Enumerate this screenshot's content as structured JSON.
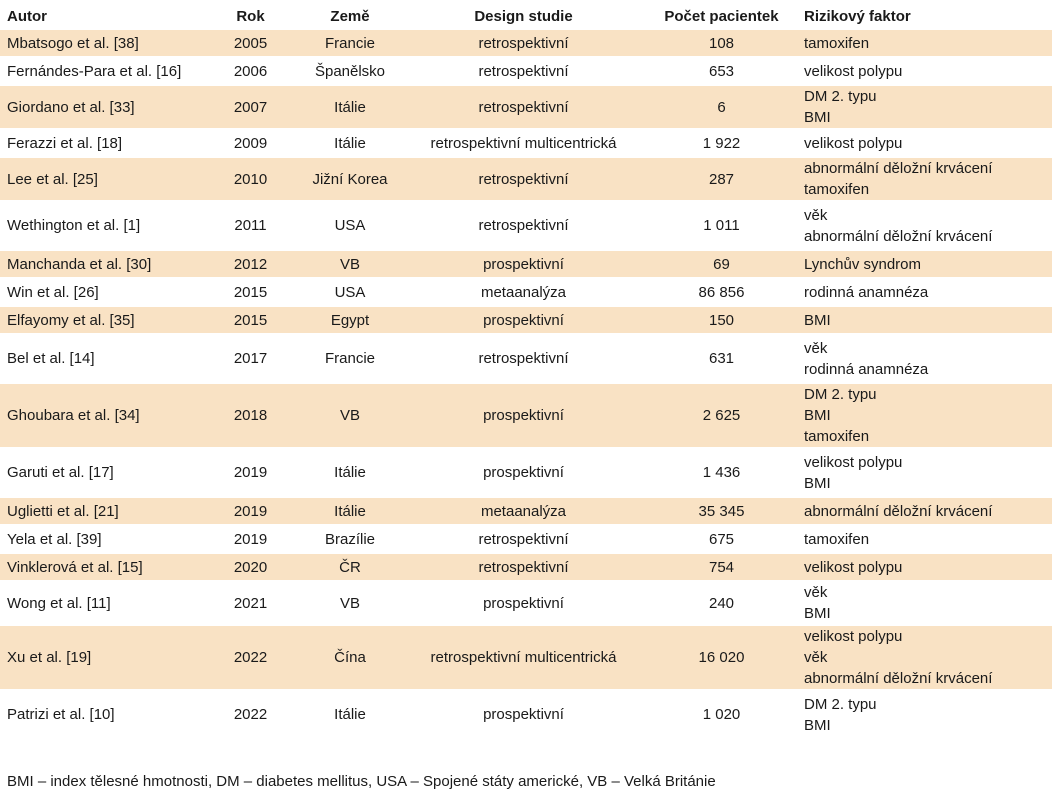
{
  "headers": [
    "Autor",
    "Rok",
    "Země",
    "Design studie",
    "Počet pacientek",
    "Rizikový faktor"
  ],
  "rows": [
    {
      "autor": "Mbatsogo et al. [38]",
      "rok": "2005",
      "zeme": "Francie",
      "design": "retrospektivní",
      "pocet": "108",
      "rf": [
        "tamoxifen"
      ]
    },
    {
      "autor": "Fernándes-Para et al. [16]",
      "rok": "2006",
      "zeme": "Španělsko",
      "design": "retrospektivní",
      "pocet": "653",
      "rf": [
        "velikost polypu"
      ]
    },
    {
      "autor": "Giordano et al. [33]",
      "rok": "2007",
      "zeme": "Itálie",
      "design": "retrospektivní",
      "pocet": "6",
      "rf": [
        "DM 2. typu",
        "BMI"
      ]
    },
    {
      "autor": "Ferazzi et al. [18]",
      "rok": "2009",
      "zeme": "Itálie",
      "design": "retrospektivní multicentrická",
      "pocet": "1 922",
      "rf": [
        "velikost polypu"
      ]
    },
    {
      "autor": "Lee et al. [25]",
      "rok": "2010",
      "zeme": "Jižní Korea",
      "design": "retrospektivní",
      "pocet": "287",
      "rf": [
        "abnormální děložní krvácení",
        "tamoxifen"
      ]
    },
    {
      "autor": "Wethington et al. [1]",
      "rok": "2011",
      "zeme": "USA",
      "design": "retrospektivní",
      "pocet": "1 011",
      "rf": [
        "věk",
        "abnormální děložní krvácení"
      ]
    },
    {
      "autor": "Manchanda et al. [30]",
      "rok": "2012",
      "zeme": "VB",
      "design": "prospektivní",
      "pocet": "69",
      "rf": [
        "Lynchův syndrom"
      ]
    },
    {
      "autor": "Win et al. [26]",
      "rok": "2015",
      "zeme": "USA",
      "design": "metaanalýza",
      "pocet": "86 856",
      "rf": [
        "rodinná anamnéza"
      ]
    },
    {
      "autor": "Elfayomy et al. [35]",
      "rok": "2015",
      "zeme": "Egypt",
      "design": "prospektivní",
      "pocet": "150",
      "rf": [
        "BMI"
      ]
    },
    {
      "autor": "Bel et al. [14]",
      "rok": "2017",
      "zeme": "Francie",
      "design": "retrospektivní",
      "pocet": "631",
      "rf": [
        "věk",
        "rodinná anamnéza"
      ]
    },
    {
      "autor": "Ghoubara et al. [34]",
      "rok": "2018",
      "zeme": "VB",
      "design": "prospektivní",
      "pocet": "2 625",
      "rf": [
        "DM 2. typu",
        "BMI",
        "tamoxifen"
      ]
    },
    {
      "autor": "Garuti et al. [17]",
      "rok": "2019",
      "zeme": "Itálie",
      "design": "prospektivní",
      "pocet": "1 436",
      "rf": [
        "velikost polypu",
        "BMI"
      ]
    },
    {
      "autor": "Uglietti et al. [21]",
      "rok": "2019",
      "zeme": "Itálie",
      "design": "metaanalýza",
      "pocet": "35 345",
      "rf": [
        "abnormální děložní krvácení"
      ]
    },
    {
      "autor": "Yela et al. [39]",
      "rok": "2019",
      "zeme": "Brazílie",
      "design": "retrospektivní",
      "pocet": "675",
      "rf": [
        "tamoxifen"
      ]
    },
    {
      "autor": "Vinklerová et al. [15]",
      "rok": "2020",
      "zeme": "ČR",
      "design": "retrospektivní",
      "pocet": "754",
      "rf": [
        "velikost polypu"
      ]
    },
    {
      "autor": "Wong et al. [11]",
      "rok": "2021",
      "zeme": "VB",
      "design": "prospektivní",
      "pocet": "240",
      "rf": [
        "věk",
        "BMI"
      ]
    },
    {
      "autor": "Xu et al. [19]",
      "rok": "2022",
      "zeme": "Čína",
      "design": "retrospektivní multicentrická",
      "pocet": "16 020",
      "rf": [
        "velikost polypu",
        "věk",
        "abnormální děložní krvácení"
      ]
    },
    {
      "autor": "Patrizi et al. [10]",
      "rok": "2022",
      "zeme": "Itálie",
      "design": "prospektivní",
      "pocet": "1 020",
      "rf": [
        "DM 2. typu",
        "BMI"
      ]
    }
  ],
  "footnote": "BMI – index tělesné hmotnosti, DM – diabetes mellitus, USA – Spojené státy americké, VB – Velká Británie",
  "colors": {
    "row_shade": "#f9e2c4",
    "row_plain": "#ffffff",
    "text": "#1a1a1a"
  }
}
